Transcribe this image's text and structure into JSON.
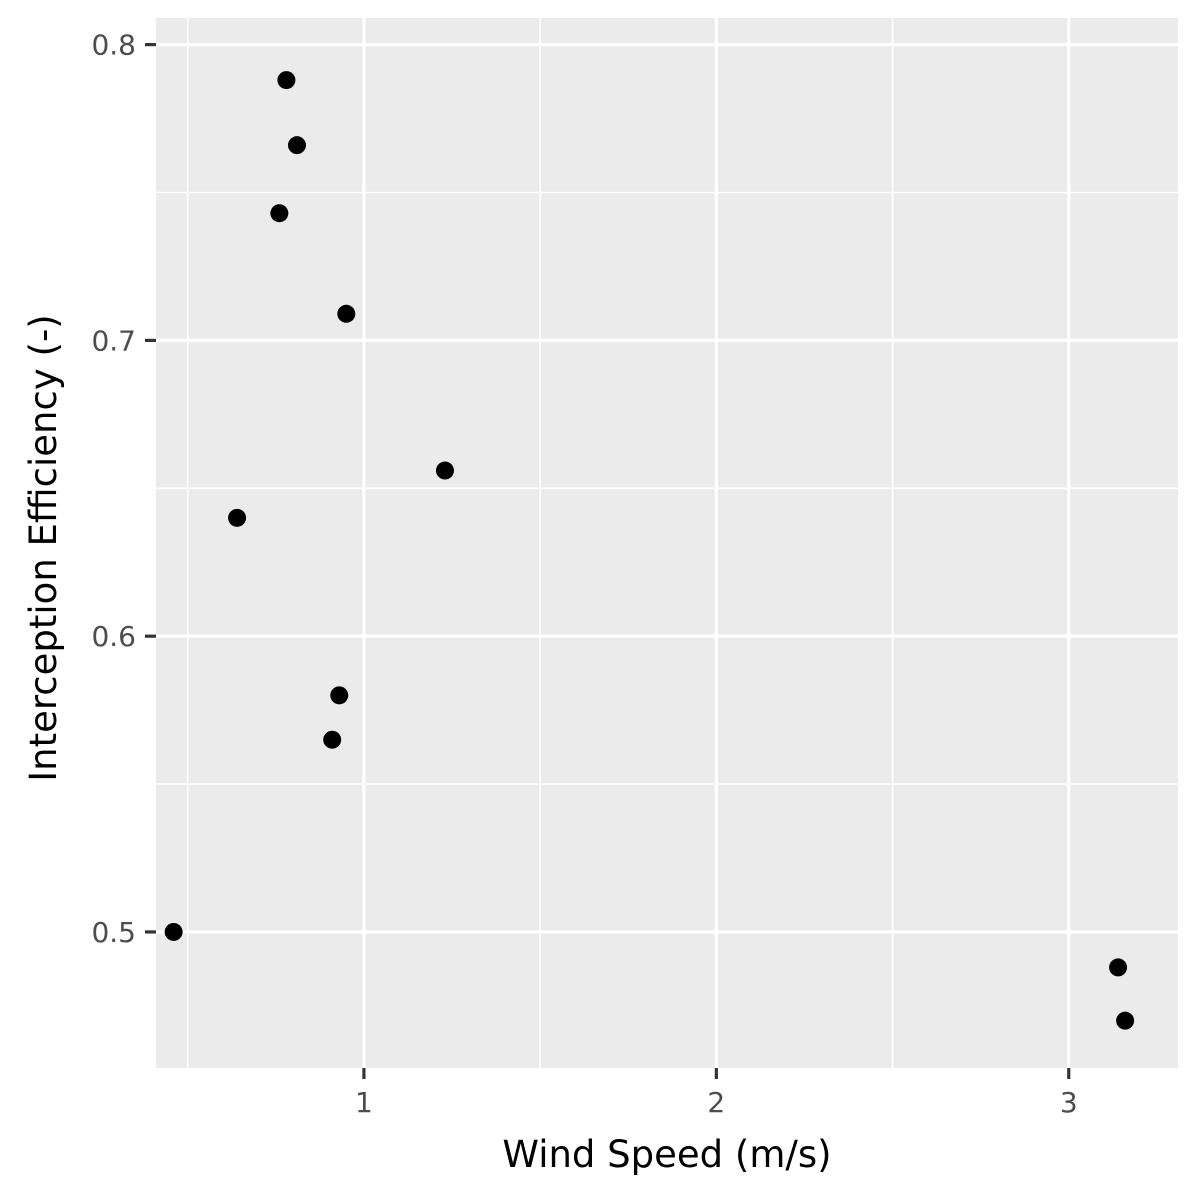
{
  "chart_data": {
    "type": "scatter",
    "title": "",
    "xlabel": "Wind Speed (m/s)",
    "ylabel": "Interception Efficiency (-)",
    "xlim": [
      0.41,
      3.31
    ],
    "ylim": [
      0.454,
      0.809
    ],
    "x_ticks": [
      1,
      2,
      3
    ],
    "x_minor_ticks": [
      0.5,
      1.5,
      2.5
    ],
    "x_tick_labels": [
      "1",
      "2",
      "3"
    ],
    "y_ticks": [
      0.5,
      0.6,
      0.7,
      0.8
    ],
    "y_minor_ticks": [
      0.55,
      0.65,
      0.75
    ],
    "y_tick_labels": [
      "0.5",
      "0.6",
      "0.7",
      "0.8"
    ],
    "grid": true,
    "legend": "none",
    "colors": {
      "panel": "#ebebeb",
      "grid": "#ffffff",
      "point": "#000000",
      "tick": "#333333"
    },
    "points": [
      {
        "x": 0.78,
        "y": 0.788
      },
      {
        "x": 0.81,
        "y": 0.766
      },
      {
        "x": 0.76,
        "y": 0.743
      },
      {
        "x": 0.95,
        "y": 0.709
      },
      {
        "x": 1.23,
        "y": 0.656
      },
      {
        "x": 0.64,
        "y": 0.64
      },
      {
        "x": 0.93,
        "y": 0.58
      },
      {
        "x": 0.91,
        "y": 0.565
      },
      {
        "x": 0.46,
        "y": 0.5
      },
      {
        "x": 3.14,
        "y": 0.488
      },
      {
        "x": 3.16,
        "y": 0.47
      }
    ]
  }
}
